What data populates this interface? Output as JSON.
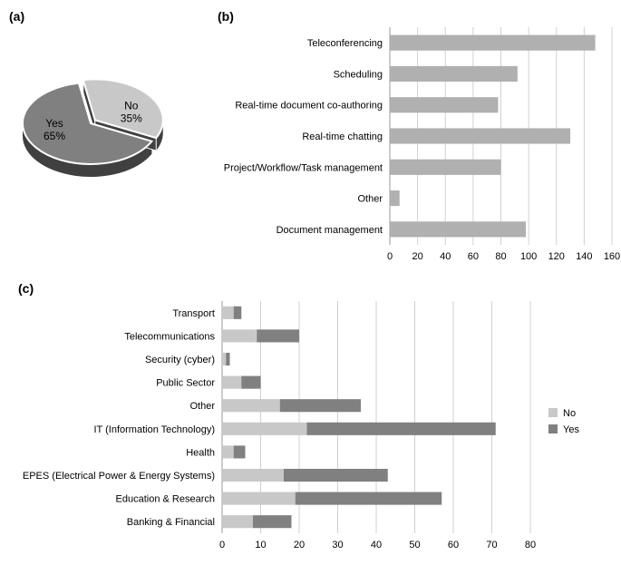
{
  "panel_a": {
    "label": "(a)",
    "type": "pie",
    "slices": [
      {
        "label": "Yes",
        "percent": 65,
        "color": "#808080"
      },
      {
        "label": "No",
        "percent": 35,
        "color": "#c8c8c8"
      }
    ],
    "slice_label_yes": "Yes",
    "slice_pct_yes": "65%",
    "slice_label_no": "No",
    "slice_pct_no": "35%",
    "edge_color": "#ffffff",
    "side_color": "#404040",
    "label_fontsize": 12
  },
  "panel_b": {
    "label": "(b)",
    "type": "bar-horizontal",
    "categories": [
      "Teleconferencing",
      "Scheduling",
      "Real-time document co-authoring",
      "Real-time chatting",
      "Project/Workflow/Task management",
      "Other",
      "Document management"
    ],
    "values": [
      148,
      92,
      78,
      130,
      80,
      7,
      98
    ],
    "bar_color": "#b0b0b0",
    "xlim": [
      0,
      160
    ],
    "xtick_step": 20,
    "xticks": [
      "0",
      "20",
      "40",
      "60",
      "80",
      "100",
      "120",
      "140",
      "160"
    ],
    "background_color": "#ffffff",
    "grid_color": "#d0d0d0",
    "label_fontsize": 11
  },
  "panel_c": {
    "label": "(c)",
    "type": "stacked-bar-horizontal",
    "categories": [
      "Transport",
      "Telecommunications",
      "Security (cyber)",
      "Public Sector",
      "Other",
      "IT (Information Technology)",
      "Health",
      "EPES (Electrical Power & Energy Systems)",
      "Education & Research",
      "Banking & Financial"
    ],
    "series": [
      {
        "name": "No",
        "color": "#c8c8c8",
        "values": [
          3,
          9,
          1,
          5,
          15,
          22,
          3,
          16,
          19,
          8
        ]
      },
      {
        "name": "Yes",
        "color": "#808080",
        "values": [
          2,
          11,
          1,
          5,
          21,
          49,
          3,
          27,
          38,
          10
        ]
      }
    ],
    "legend": [
      {
        "name": "No",
        "color": "#c8c8c8"
      },
      {
        "name": "Yes",
        "color": "#808080"
      }
    ],
    "xlim": [
      0,
      80
    ],
    "xtick_step": 10,
    "xticks": [
      "0",
      "10",
      "20",
      "30",
      "40",
      "50",
      "60",
      "70",
      "80"
    ],
    "background_color": "#ffffff",
    "grid_color": "#d0d0d0",
    "label_fontsize": 11
  }
}
